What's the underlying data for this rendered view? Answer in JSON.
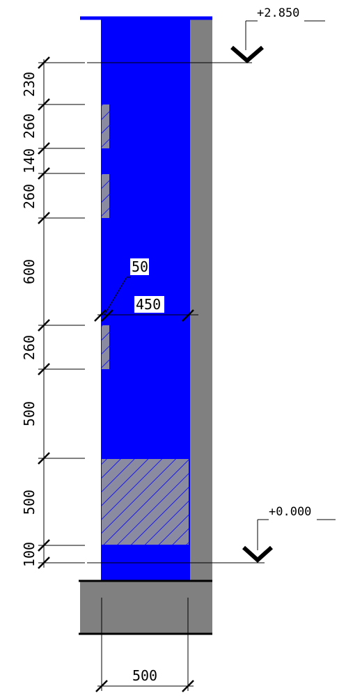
{
  "levels": {
    "top": "+2.850",
    "bottom": "+0.000"
  },
  "vertical_dims": [
    "230",
    "260",
    "140",
    "260",
    "600",
    "260",
    "500",
    "500",
    "100"
  ],
  "detail_dims": {
    "small": "50",
    "wall": "450"
  },
  "bottom_dim": "500",
  "colors": {
    "wall_fill": "#0000ff",
    "concrete": "#808080",
    "line": "#000000",
    "hatch": "#0000ff"
  }
}
